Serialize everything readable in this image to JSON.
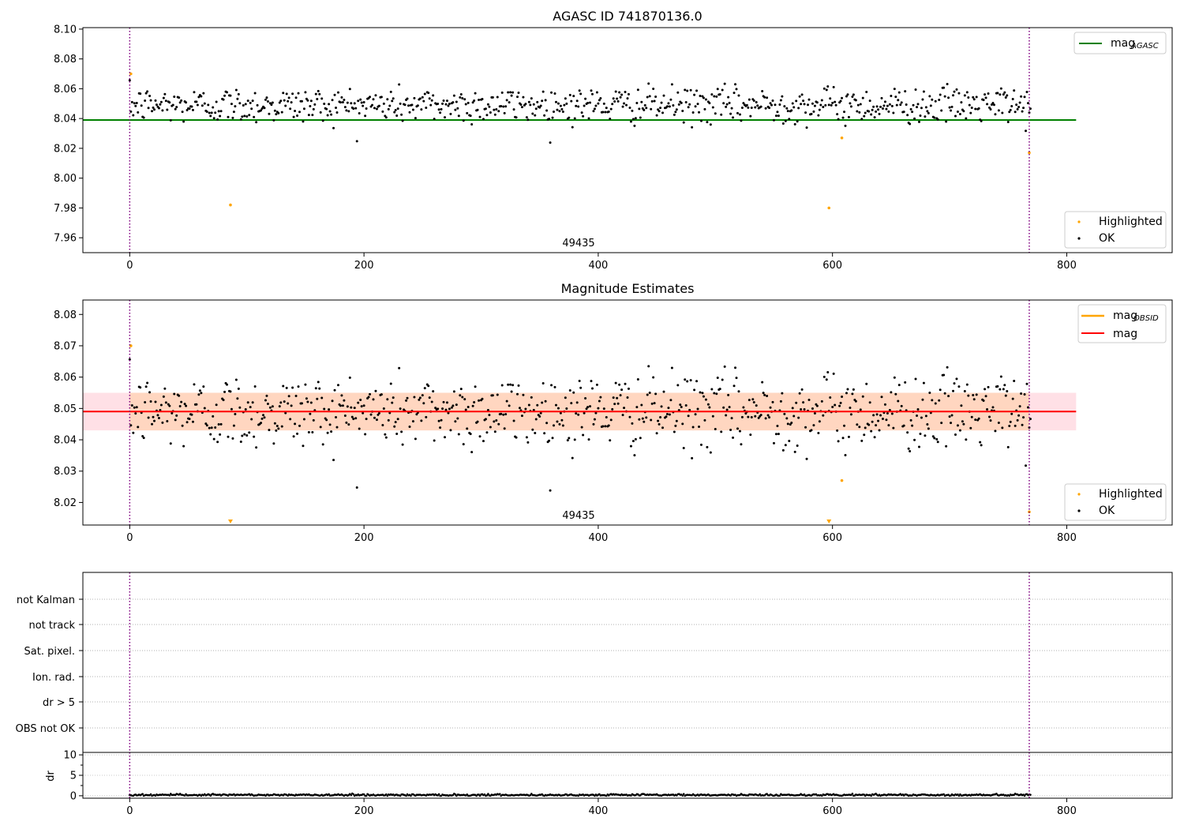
{
  "chart_data": [
    {
      "type": "scatter",
      "title": "AGASC ID 741870136.0",
      "xlabel": "",
      "ylabel": "",
      "xlim": [
        -40,
        890
      ],
      "ylim": [
        7.95,
        8.101
      ],
      "xticks": [
        "0",
        "200",
        "400",
        "600",
        "800"
      ],
      "yticks": [
        "7.96",
        "7.98",
        "8.00",
        "8.02",
        "8.04",
        "8.06",
        "8.08",
        "8.10"
      ],
      "annotation": {
        "text": "49435",
        "x": 400
      },
      "vlines": [
        0,
        768
      ],
      "line_mag_agasc": {
        "y": 8.039,
        "x_range": [
          -40,
          808
        ],
        "color": "#008000"
      },
      "legend_top": {
        "placement": "top-right",
        "entries": [
          {
            "label": "mag",
            "sub": "AGASC",
            "color": "#008000"
          }
        ]
      },
      "legend_bottom": {
        "placement": "bottom-right",
        "entries": [
          {
            "label": "Highlighted",
            "color": "#ffa500"
          },
          {
            "label": "OK",
            "color": "#000000"
          }
        ]
      },
      "series": [
        {
          "name": "Highlighted",
          "points": [
            [
              1,
              8.07
            ],
            [
              86,
              7.982
            ],
            [
              597,
              7.98
            ],
            [
              608,
              8.027
            ],
            [
              768,
              8.017
            ]
          ]
        },
        {
          "name": "OK",
          "center": 8.049,
          "sigma": 0.006,
          "n": 770
        }
      ]
    },
    {
      "type": "scatter",
      "title": "Magnitude Estimates",
      "xlabel": "",
      "ylabel": "",
      "xlim": [
        -40,
        890
      ],
      "ylim": [
        8.0128,
        8.0846
      ],
      "xticks": [
        "0",
        "200",
        "400",
        "600",
        "800"
      ],
      "yticks": [
        "8.02",
        "8.03",
        "8.04",
        "8.05",
        "8.06",
        "8.07",
        "8.08"
      ],
      "annotation": {
        "text": "49435",
        "x": 400
      },
      "vlines": [
        0,
        768
      ],
      "band_pink": {
        "y": [
          8.043,
          8.055
        ],
        "x_range": [
          -40,
          808
        ],
        "color": "#ffe0e6"
      },
      "band_orange": {
        "y": [
          8.043,
          8.055
        ],
        "x_range": [
          0,
          768
        ],
        "color": "#ffd6c0"
      },
      "line_mag": {
        "y": 8.049,
        "x_range": [
          -40,
          808
        ],
        "color": "#ff0000"
      },
      "legend_top": {
        "placement": "top-right",
        "entries": [
          {
            "label": "mag",
            "sub": "OBSID",
            "color": "#ffa500"
          },
          {
            "label": "mag",
            "sub": "",
            "color": "#ff0000"
          }
        ]
      },
      "legend_bottom": {
        "placement": "bottom-right",
        "entries": [
          {
            "label": "Highlighted",
            "color": "#ffa500"
          },
          {
            "label": "OK",
            "color": "#000000"
          }
        ]
      },
      "series": [
        {
          "name": "Highlighted",
          "points": [
            [
              1,
              8.07
            ],
            [
              608,
              8.027
            ],
            [
              768,
              8.017
            ]
          ],
          "below_axis_markers": [
            86,
            597
          ]
        },
        {
          "name": "OK",
          "center": 8.049,
          "sigma": 0.006,
          "n": 770
        }
      ]
    },
    {
      "type": "scatter",
      "title": "",
      "xlim": [
        -40,
        890
      ],
      "flag_labels": [
        "not Kalman",
        "not track",
        "Sat. pixel.",
        "Ion. rad.",
        "dr > 5",
        "OBS not OK"
      ],
      "vlines": [
        0,
        768
      ]
    },
    {
      "type": "scatter",
      "title": "",
      "xlabel": "",
      "ylabel": "dr",
      "xlim": [
        -40,
        890
      ],
      "ylim": [
        -0.6,
        10.6
      ],
      "xticks": [
        "0",
        "200",
        "400",
        "600",
        "800"
      ],
      "yticks": [
        "0",
        "5",
        "10"
      ],
      "vlines": [
        0,
        768
      ],
      "series": [
        {
          "name": "dr",
          "center": 0.2,
          "sigma": 0.12,
          "n": 770
        }
      ]
    }
  ]
}
